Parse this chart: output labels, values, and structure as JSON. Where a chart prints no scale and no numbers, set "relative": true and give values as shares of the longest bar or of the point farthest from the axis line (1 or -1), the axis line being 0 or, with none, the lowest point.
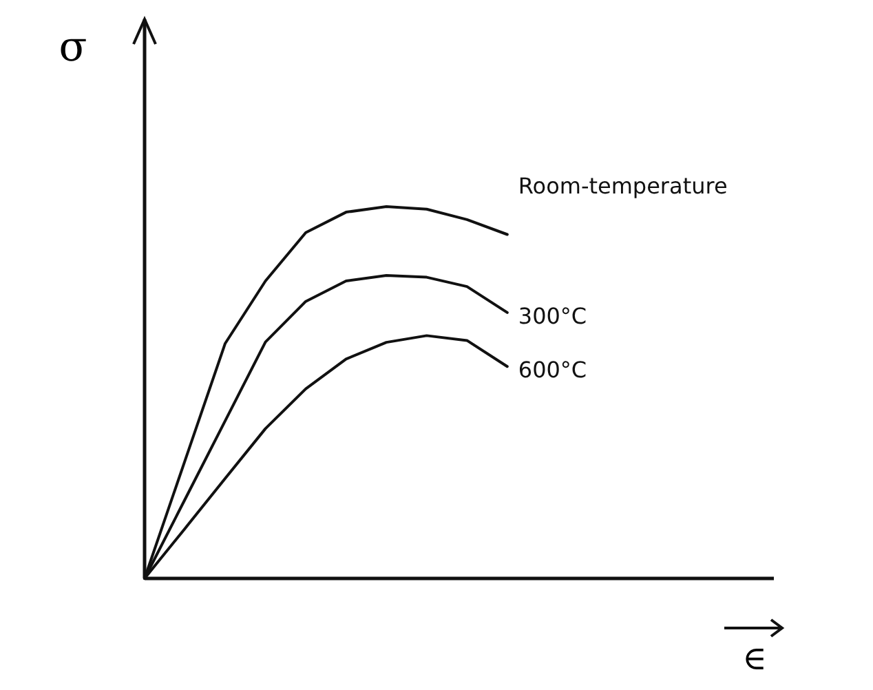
{
  "chart_data": {
    "type": "line",
    "relative": true,
    "xlabel": "∈",
    "ylabel": "σ",
    "legend": false,
    "line_style": "solid",
    "categories": [
      null,
      null,
      null,
      null,
      null,
      null,
      null,
      null,
      null,
      null,
      null,
      null,
      null,
      null,
      null,
      null
    ],
    "series": [
      {
        "name": "Room-temperature",
        "color": "#111111",
        "values": [
          0,
          0.316,
          0.632,
          0.8,
          0.93,
          0.985,
          1,
          0.993,
          0.965,
          0.925,
          null,
          null,
          null,
          null,
          null,
          null
        ]
      },
      {
        "name": "300°C",
        "color": "#111111",
        "values": [
          0,
          0.212,
          0.424,
          0.636,
          0.745,
          0.8,
          0.815,
          0.81,
          0.785,
          0.715,
          null,
          null,
          null,
          null,
          null,
          null
        ]
      },
      {
        "name": "600°C",
        "color": "#111111",
        "values": [
          0,
          0.134,
          0.269,
          0.403,
          0.51,
          0.59,
          0.635,
          0.653,
          0.64,
          0.57,
          null,
          null,
          null,
          null,
          null,
          null
        ]
      }
    ]
  }
}
